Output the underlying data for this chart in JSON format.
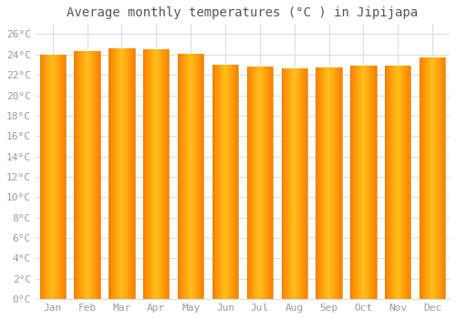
{
  "title": "Average monthly temperatures (°C ) in Jipijapa",
  "months": [
    "Jan",
    "Feb",
    "Mar",
    "Apr",
    "May",
    "Jun",
    "Jul",
    "Aug",
    "Sep",
    "Oct",
    "Nov",
    "Dec"
  ],
  "values": [
    24.0,
    24.3,
    24.6,
    24.5,
    24.1,
    23.0,
    22.8,
    22.6,
    22.7,
    22.9,
    22.9,
    23.7
  ],
  "bar_color": "#FFA500",
  "bar_edge_color": "#E08000",
  "ylim": [
    0,
    27
  ],
  "yticks": [
    0,
    2,
    4,
    6,
    8,
    10,
    12,
    14,
    16,
    18,
    20,
    22,
    24,
    26
  ],
  "ytick_labels": [
    "0°C",
    "2°C",
    "4°C",
    "6°C",
    "8°C",
    "10°C",
    "12°C",
    "14°C",
    "16°C",
    "18°C",
    "20°C",
    "22°C",
    "24°C",
    "26°C"
  ],
  "grid_color": "#dddddd",
  "background_color": "#ffffff",
  "plot_bg_color": "#ffffff",
  "title_fontsize": 10,
  "tick_fontsize": 8,
  "font_color": "#999999",
  "title_color": "#555555"
}
